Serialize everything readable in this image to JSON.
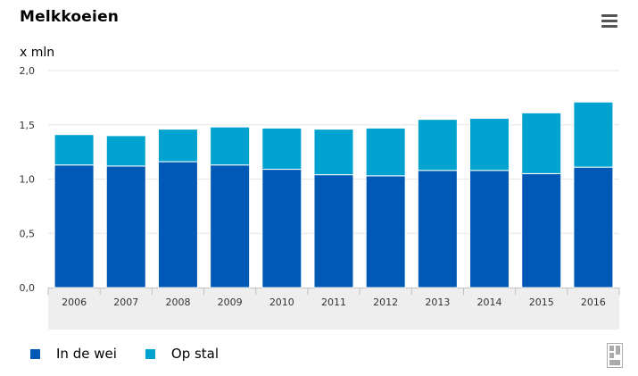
{
  "title": "Melkkoeien",
  "menu_icon": "hamburger-menu-icon",
  "logo_icon": "cbs-logo-icon",
  "colors": {
    "in_de_wei": "#0059B5",
    "op_stal": "#00A2CF",
    "grid": "#e6e6e6",
    "xaxis_band": "#eeeeee",
    "axis_text": "#333333"
  },
  "chart_data": {
    "type": "bar",
    "stacked": true,
    "ylabel": "x mln",
    "ylim": [
      0,
      2.0
    ],
    "yticks": [
      0,
      0.5,
      1.0,
      1.5,
      2.0
    ],
    "ytick_labels": [
      "0,0",
      "0,5",
      "1,0",
      "1,5",
      "2,0"
    ],
    "categories": [
      "2006",
      "2007",
      "2008",
      "2009",
      "2010",
      "2011",
      "2012",
      "2013",
      "2014",
      "2015",
      "2016"
    ],
    "series": [
      {
        "name": "In de wei",
        "values": [
          1.13,
          1.12,
          1.16,
          1.13,
          1.09,
          1.04,
          1.03,
          1.08,
          1.08,
          1.05,
          1.11
        ]
      },
      {
        "name": "Op stal",
        "values": [
          0.28,
          0.28,
          0.3,
          0.35,
          0.38,
          0.42,
          0.44,
          0.47,
          0.48,
          0.56,
          0.6
        ]
      }
    ],
    "grid": true,
    "legend_position": "bottom-left"
  }
}
